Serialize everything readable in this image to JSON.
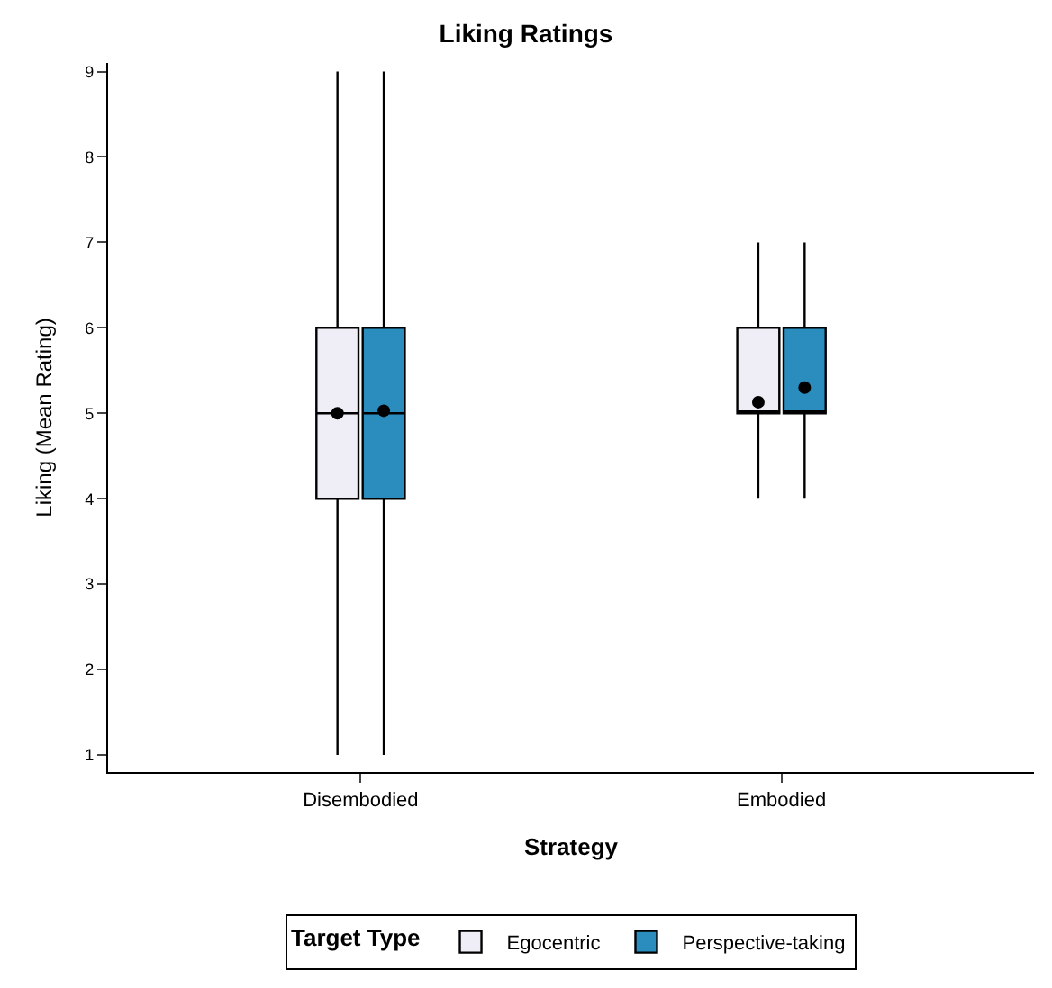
{
  "chart_data": {
    "type": "box",
    "title": "Liking Ratings",
    "xlabel": "Strategy",
    "ylabel": "Liking (Mean Rating)",
    "legend_title": "Target Type",
    "categories": [
      "Disembodied",
      "Embodied"
    ],
    "series": [
      {
        "name": "Egocentric",
        "color": "#efedf5",
        "boxes": [
          {
            "low": 1,
            "q1": 4,
            "median": 5,
            "q3": 6,
            "high": 9,
            "mean": 5.0
          },
          {
            "low": 4,
            "q1": 5,
            "median": 5,
            "q3": 6,
            "high": 7,
            "mean": 5.13
          }
        ]
      },
      {
        "name": "Perspective-taking",
        "color": "#2b8cbe",
        "boxes": [
          {
            "low": 1,
            "q1": 4,
            "median": 5,
            "q3": 6,
            "high": 9,
            "mean": 5.03
          },
          {
            "low": 4,
            "q1": 5,
            "median": 5,
            "q3": 6,
            "high": 7,
            "mean": 5.3
          }
        ]
      }
    ],
    "ylim": [
      0.8,
      9.1
    ],
    "yticks": [
      1,
      2,
      3,
      4,
      5,
      6,
      7,
      8,
      9
    ],
    "legend": "bottom",
    "marker": "circle"
  }
}
